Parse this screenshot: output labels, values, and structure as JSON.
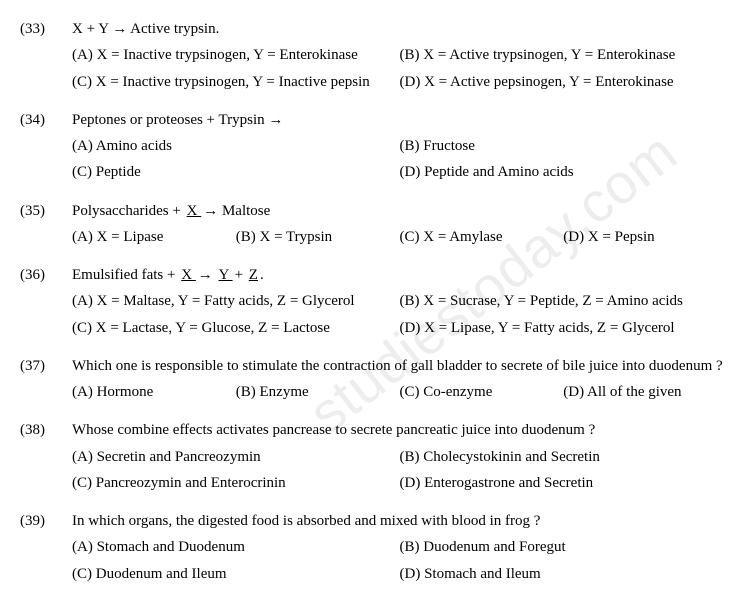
{
  "watermark": "studiestoday.com",
  "questions": [
    {
      "num": "(33)",
      "text": "X + Y → Active trypsin.",
      "layout": "2",
      "opts": [
        "(A) X = Inactive trypsinogen, Y = Enterokinase",
        "(B) X = Active trypsinogen, Y = Enterokinase",
        "(C) X = Inactive trypsinogen, Y = Inactive pepsin",
        "(D) X = Active pepsinogen, Y = Enterokinase"
      ]
    },
    {
      "num": "(34)",
      "text": "Peptones or proteoses + Trypsin →",
      "layout": "2",
      "opts": [
        "(A) Amino acids",
        "(B) Fructose",
        "(C) Peptide",
        "(D) Peptide and Amino acids"
      ]
    },
    {
      "num": "(35)",
      "text_html": "Polysaccharides  +  <span class=\"u\"> X </span>  →  Maltose",
      "layout": "4",
      "opts": [
        "(A) X = Lipase",
        "(B) X = Trypsin",
        "(C) X = Amylase",
        "(D) X = Pepsin"
      ]
    },
    {
      "num": "(36)",
      "text_html": "Emulsified fats  +  <span class=\"u\"> X </span>   →  <span class=\"u\"> Y </span> + <span class=\"u\"> Z</span>.",
      "layout": "2",
      "opts": [
        "(A) X = Maltase, Y = Fatty acids, Z = Glycerol",
        "(B) X = Sucrase, Y = Peptide, Z = Amino acids",
        "(C) X = Lactase, Y = Glucose, Z = Lactose",
        "(D) X = Lipase, Y = Fatty acids, Z = Glycerol"
      ]
    },
    {
      "num": "(37)",
      "text": "Which one is responsible to stimulate the contraction of gall bladder to secrete of bile juice into duodenum  ?",
      "layout": "4",
      "opts": [
        "(A) Hormone",
        "(B) Enzyme",
        "(C) Co-enzyme",
        "(D) All of the given"
      ]
    },
    {
      "num": "(38)",
      "text": "Whose combine effects activates pancrease to secrete pancreatic juice into duodenum ?",
      "layout": "2",
      "opts": [
        "(A) Secretin and Pancreozymin",
        "(B) Cholecystokinin and Secretin",
        "(C) Pancreozymin and Enterocrinin",
        "(D) Enterogastrone and Secretin"
      ]
    },
    {
      "num": "(39)",
      "text": "In which organs, the digested food is absorbed and mixed with blood in frog ?",
      "layout": "2",
      "opts": [
        "(A) Stomach and Duodenum",
        "(B) Duodenum and Foregut",
        "(C) Duodenum and Ileum",
        "(D) Stomach and Ileum"
      ]
    }
  ]
}
